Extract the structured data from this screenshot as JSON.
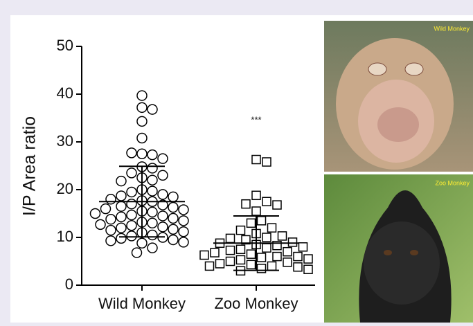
{
  "chart_data": {
    "type": "dot",
    "ylabel": "I/P Area ratio",
    "categories": [
      "Wild Monkey",
      "Zoo Monkey"
    ],
    "ylim": [
      0,
      50
    ],
    "yticks": [
      0,
      10,
      20,
      30,
      40,
      50
    ],
    "annotation": "***",
    "groups": [
      {
        "marker": "circle",
        "mean": 17.5,
        "sd": 7.4,
        "values": [
          39.7,
          37.2,
          36.8,
          34.3,
          30.8,
          27.5,
          27.3,
          27.7,
          26.5,
          24.8,
          24.5,
          23.5,
          23,
          22.5,
          22,
          21.8,
          20,
          19.7,
          19.5,
          19,
          18.7,
          18.5,
          18,
          17.7,
          17.5,
          17,
          16.8,
          16.5,
          16.3,
          16,
          15.8,
          15.5,
          15.3,
          15,
          14.7,
          14.5,
          14.3,
          14,
          13.8,
          13.5,
          13.2,
          13,
          12.7,
          12.5,
          12.2,
          12,
          11.7,
          11.5,
          11.2,
          11,
          10.5,
          10.3,
          10,
          9.8,
          9.5,
          9.3,
          9,
          8.8,
          7.8,
          6.8
        ]
      },
      {
        "marker": "square",
        "mean": 8.8,
        "sd": 5.7,
        "values": [
          26.3,
          25.8,
          18.8,
          17.5,
          17,
          16.8,
          15.5,
          13.5,
          13,
          12,
          11.5,
          10.8,
          10.3,
          10,
          9.8,
          9.5,
          9,
          8.8,
          8.5,
          8.3,
          8,
          7.8,
          7.5,
          7.3,
          7,
          6.8,
          6.5,
          6.3,
          6,
          6,
          5.8,
          5.5,
          5.3,
          5,
          4.8,
          4.5,
          4.3,
          4,
          4,
          3.8,
          3.5,
          3.3,
          3
        ]
      }
    ]
  },
  "photos": [
    {
      "label": "Wild Monkey"
    },
    {
      "label": "Zoo Monkey"
    }
  ]
}
